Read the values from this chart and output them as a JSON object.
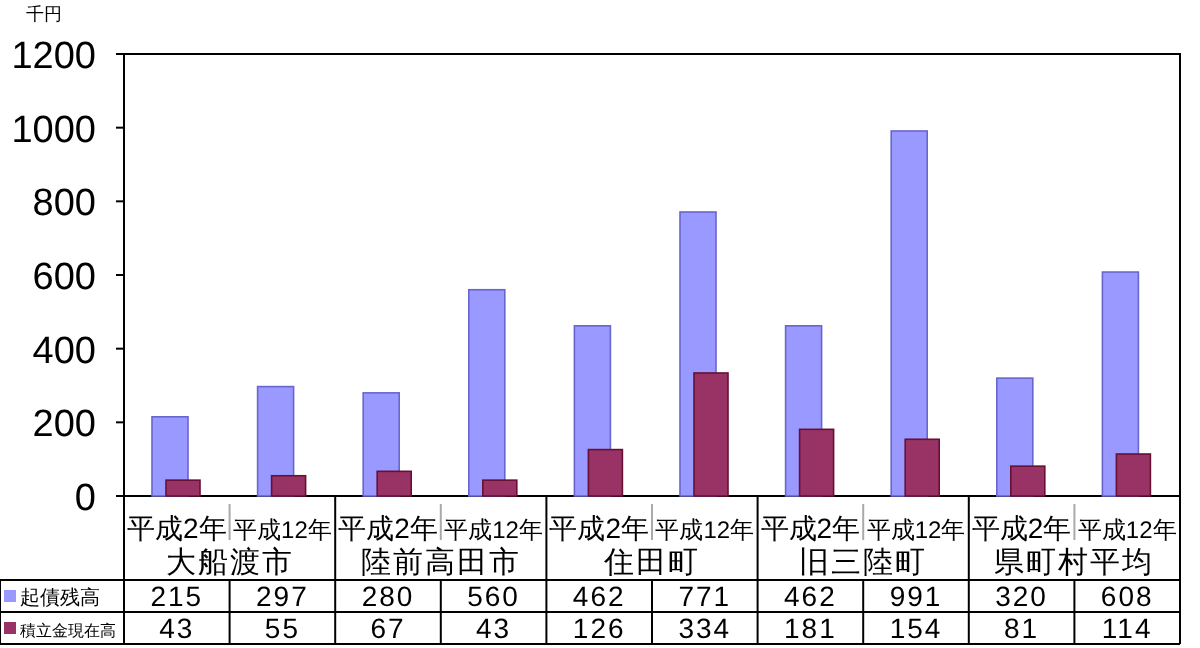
{
  "chart_data": {
    "type": "bar",
    "ylabel": "千円",
    "categories": [
      "平成2年",
      "平成12年",
      "平成2年",
      "平成12年",
      "平成2年",
      "平成12年",
      "平成2年",
      "平成12年",
      "平成2年",
      "平成12年"
    ],
    "annotations": [
      "大船渡市",
      "陸前高田市",
      "住田町",
      "旧三陸町",
      "県町村平均"
    ],
    "series": [
      {
        "name": "起債残高",
        "color": "#9999ff",
        "values": [
          215,
          297,
          280,
          560,
          462,
          771,
          462,
          991,
          320,
          608
        ]
      },
      {
        "name": "積立金現在高",
        "color": "#993366",
        "values": [
          43,
          55,
          67,
          43,
          126,
          334,
          181,
          154,
          81,
          114
        ]
      }
    ],
    "ylim": [
      0,
      1200
    ],
    "yticks": [
      0,
      200,
      400,
      600,
      800,
      1000,
      1200
    ],
    "data_labels": true,
    "legend": "bottom left",
    "grid": false
  }
}
